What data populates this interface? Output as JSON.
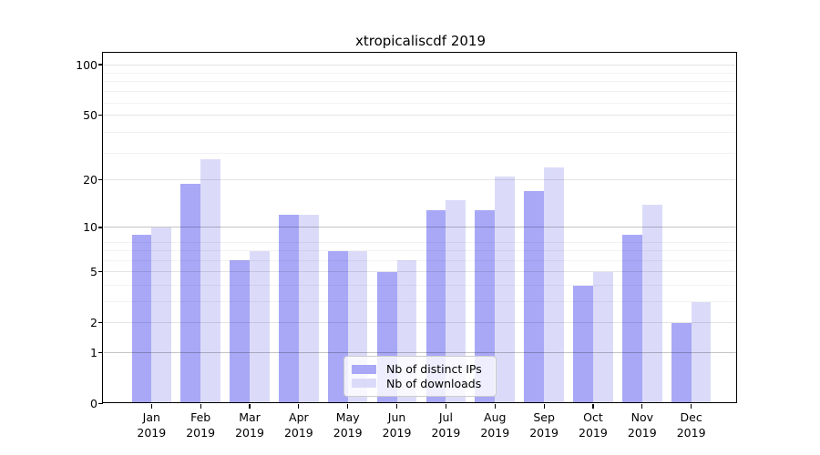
{
  "chart_data": {
    "type": "bar",
    "title": "xtropicaliscdf 2019",
    "year_label": "2019",
    "months": [
      "Jan",
      "Feb",
      "Mar",
      "Apr",
      "May",
      "Jun",
      "Jul",
      "Aug",
      "Sep",
      "Oct",
      "Nov",
      "Dec"
    ],
    "categories": [
      "Jan 2019",
      "Feb 2019",
      "Mar 2019",
      "Apr 2019",
      "May 2019",
      "Jun 2019",
      "Jul 2019",
      "Aug 2019",
      "Sep 2019",
      "Oct 2019",
      "Nov 2019",
      "Dec 2019"
    ],
    "series": [
      {
        "name": "Nb of distinct IPs",
        "color": "#a8a8f7",
        "values": [
          9,
          19,
          6,
          12,
          7,
          5,
          13,
          13,
          17,
          4,
          9,
          2
        ]
      },
      {
        "name": "Nb of downloads",
        "color": "#dbdbf9",
        "values": [
          10,
          27,
          7,
          12,
          7,
          6,
          15,
          21,
          24,
          5,
          14,
          3
        ]
      }
    ],
    "xlabel": "",
    "ylabel": "",
    "yscale": "log1p",
    "ylim": [
      0,
      118
    ],
    "yticks": [
      0,
      1,
      2,
      5,
      10,
      20,
      50,
      100
    ],
    "ytick_labels": [
      "0",
      "1",
      "2",
      "5",
      "10",
      "20",
      "50",
      "100"
    ],
    "major_grid_values": [
      1,
      10
    ],
    "sub_grid_values": [
      2,
      5,
      20,
      50,
      100
    ],
    "minor_grid_values": [
      3,
      4,
      6,
      7,
      8,
      29,
      39,
      59,
      69,
      79,
      89
    ],
    "grid": true,
    "legend_position": "inside bottom-center",
    "colors": {
      "background": "#ffffff",
      "axis": "#000000",
      "major_grid": "#c5c5c5",
      "sub_grid": "#e4e4e4",
      "minor_grid": "#f3f3f3"
    }
  }
}
